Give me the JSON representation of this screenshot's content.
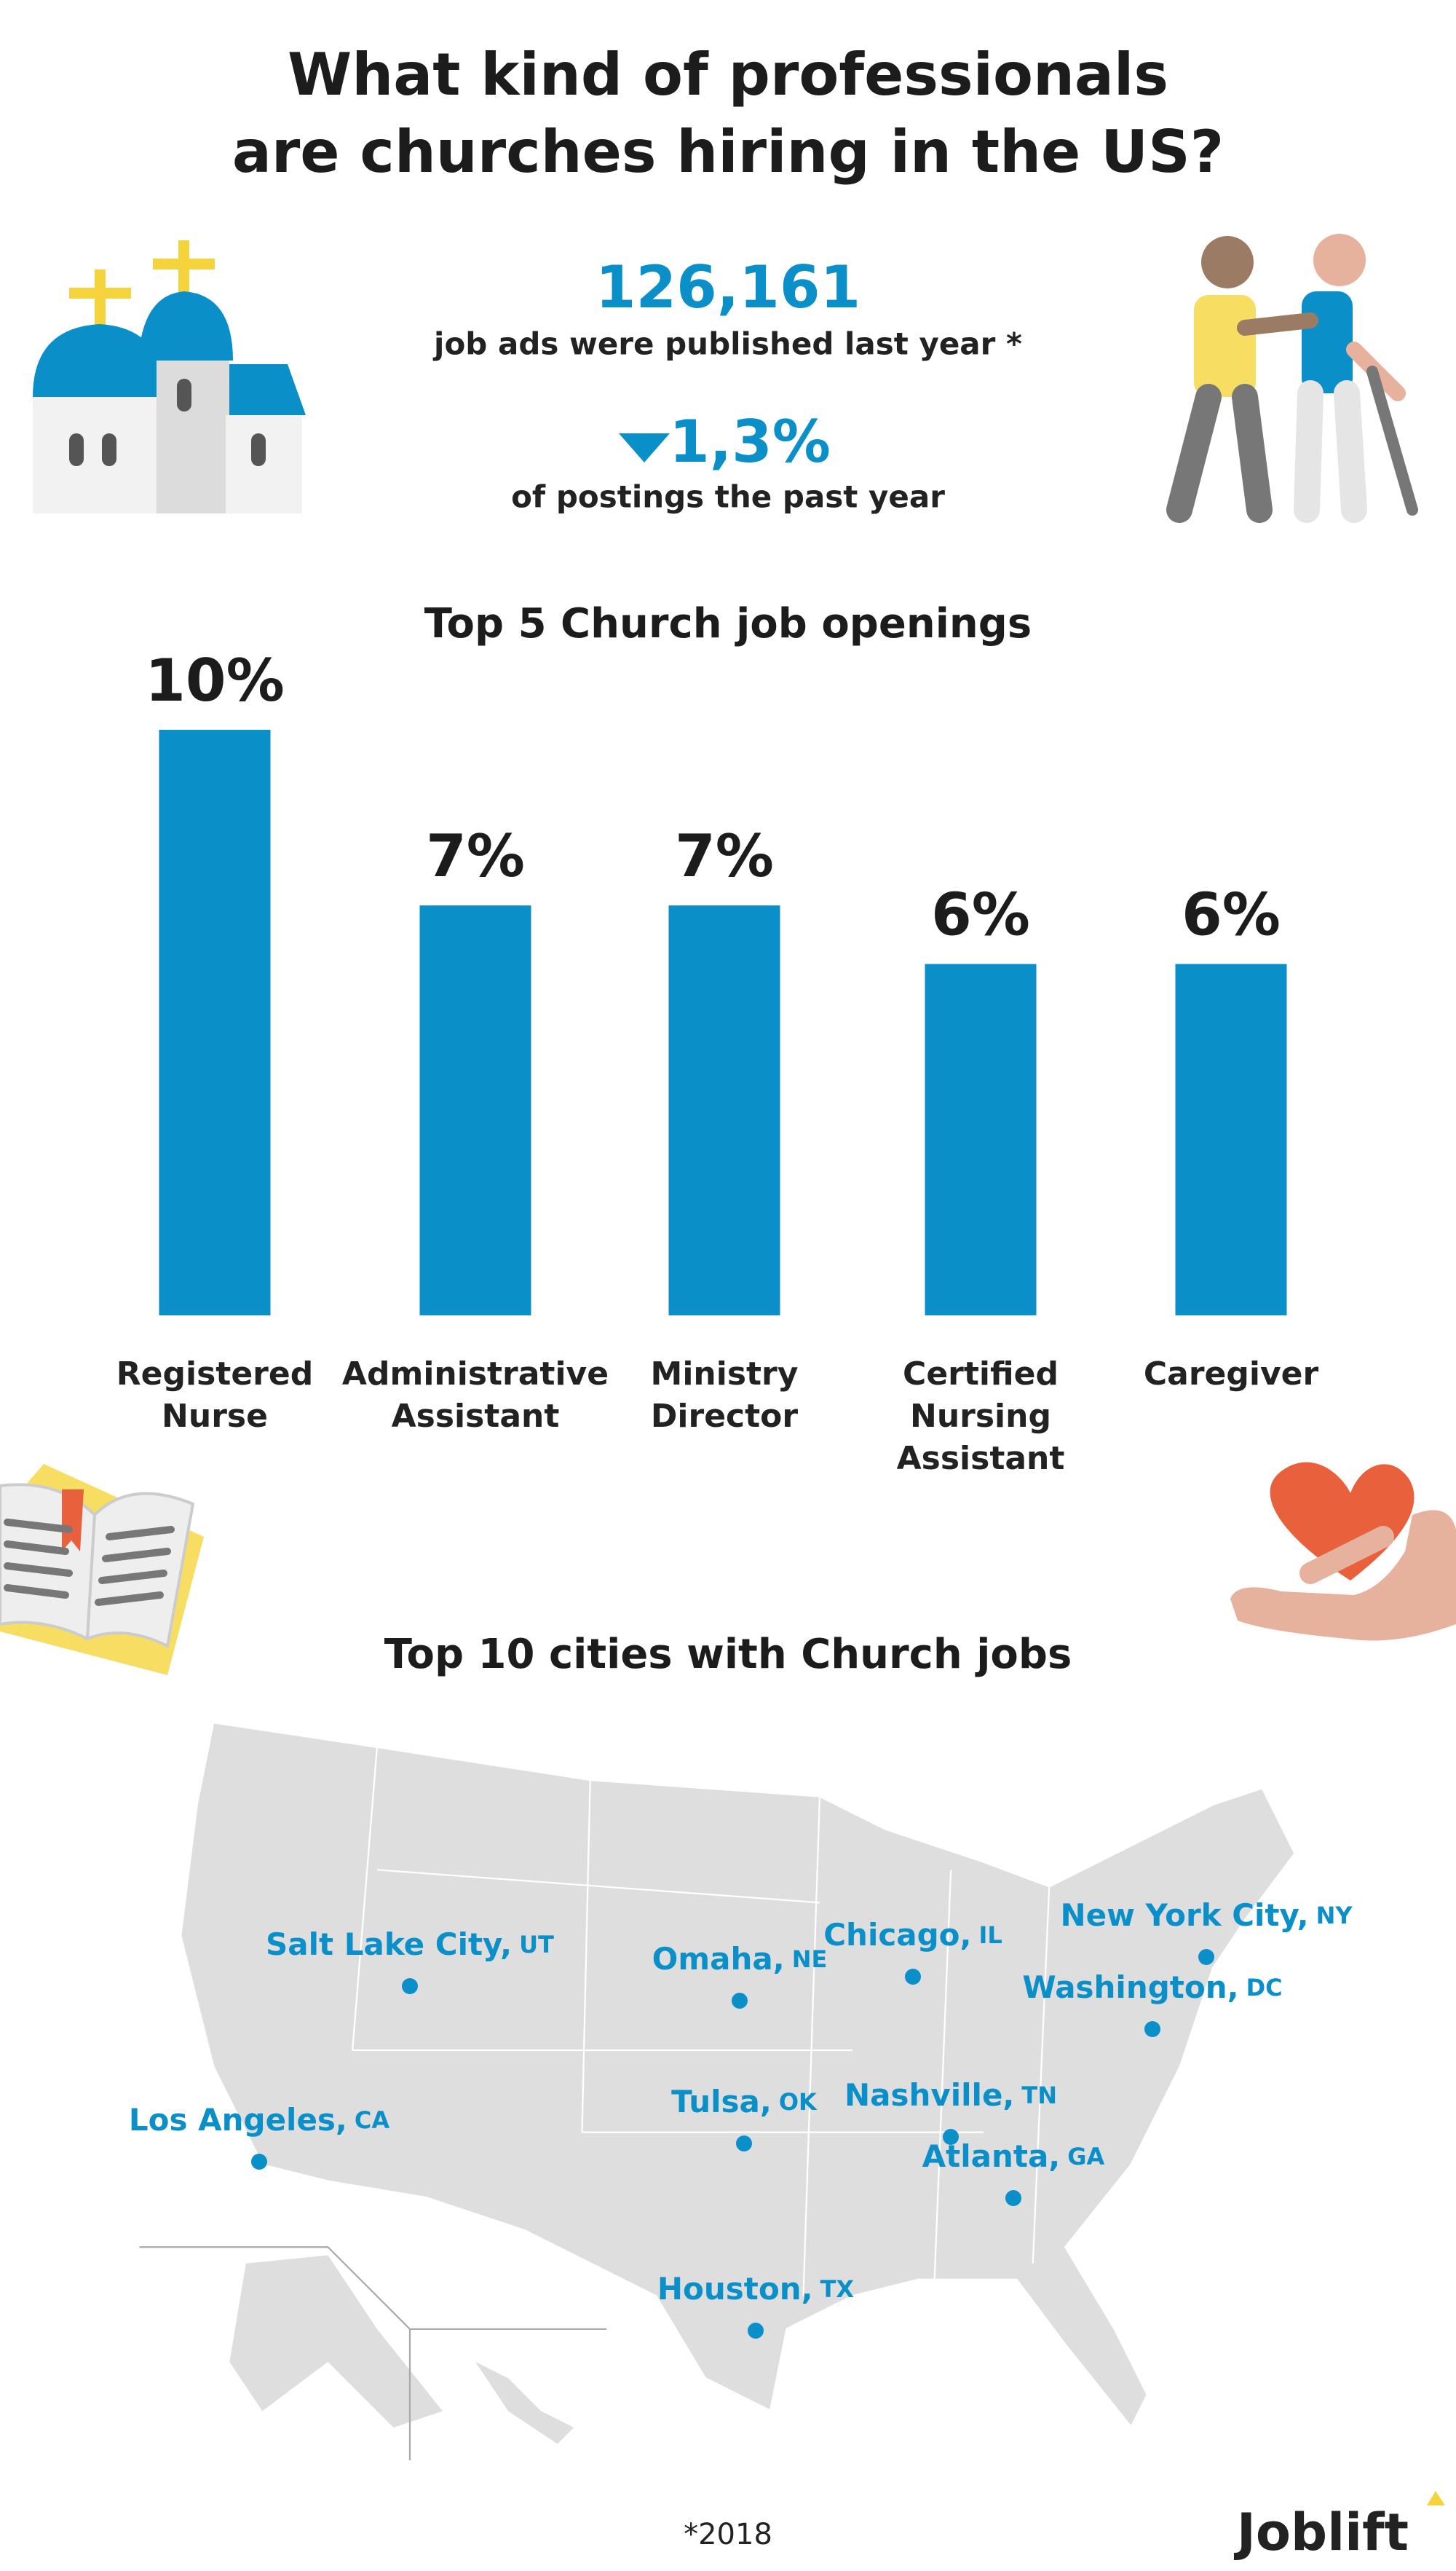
{
  "header": {
    "title_line1": "What kind of professionals",
    "title_line2": "are churches hiring in the US?"
  },
  "stats": {
    "job_ads": "126,161",
    "job_ads_caption": "job ads were published last year *",
    "change": "1,3%",
    "change_caption": "of postings the past year"
  },
  "chart_data": {
    "type": "bar",
    "title": "Top 5 Church job openings",
    "categories": [
      "Registered Nurse",
      "Administrative Assistant",
      "Ministry Director",
      "Certified Nursing Assistant",
      "Caregiver"
    ],
    "values": [
      10,
      7,
      7,
      6,
      6
    ],
    "value_labels": [
      "10%",
      "7%",
      "7%",
      "6%",
      "6%"
    ],
    "color": "#0a8fc9"
  },
  "map": {
    "title": "Top 10 cities with Church jobs",
    "cities": [
      {
        "name": "Salt Lake City,",
        "state": "UT"
      },
      {
        "name": "Omaha,",
        "state": "NE"
      },
      {
        "name": "Chicago,",
        "state": "IL"
      },
      {
        "name": "New York City,",
        "state": "NY"
      },
      {
        "name": "Washington,",
        "state": "DC"
      },
      {
        "name": "Los Angeles,",
        "state": "CA"
      },
      {
        "name": "Tulsa,",
        "state": "OK"
      },
      {
        "name": "Nashville,",
        "state": "TN"
      },
      {
        "name": "Atlanta,",
        "state": "GA"
      },
      {
        "name": "Houston,",
        "state": "TX"
      }
    ]
  },
  "footer": {
    "note": "*2018",
    "brand": "Joblift"
  }
}
